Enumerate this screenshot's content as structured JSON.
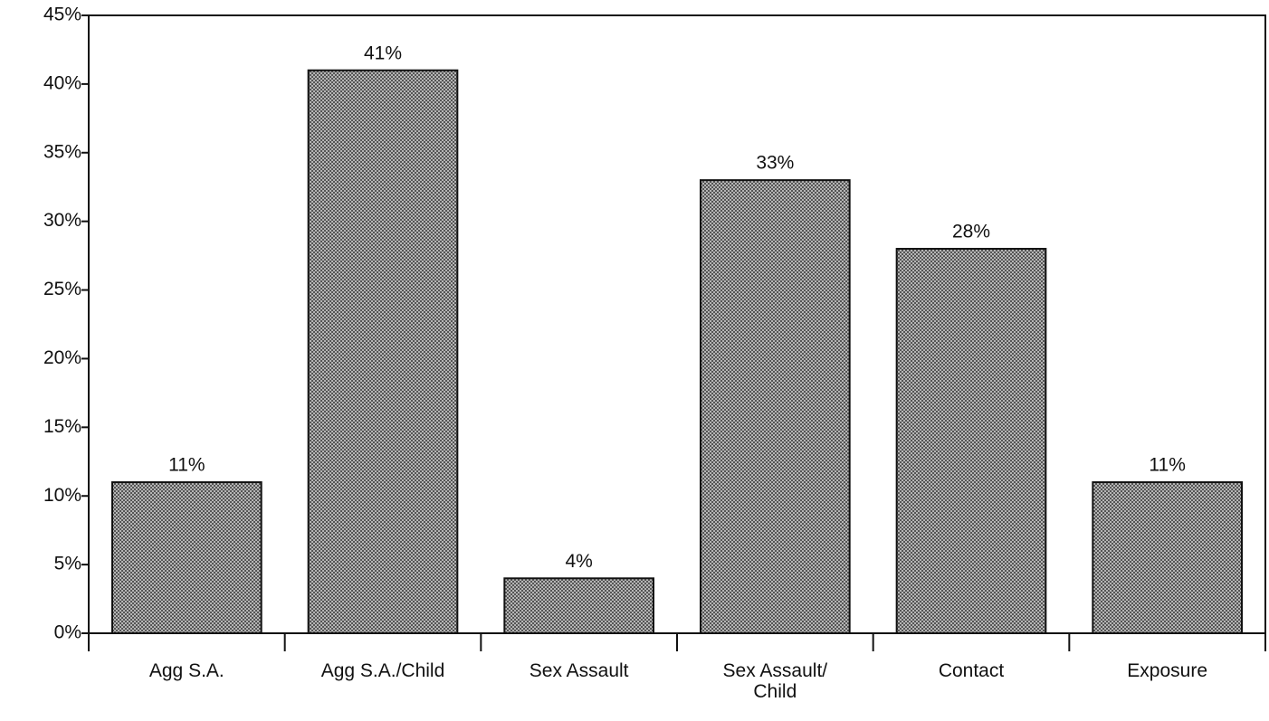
{
  "chart_data": {
    "type": "bar",
    "categories": [
      "Agg S.A.",
      "Agg S.A./Child",
      "Sex Assault",
      "Sex Assault/\nChild",
      "Contact",
      "Exposure"
    ],
    "values": [
      11,
      41,
      4,
      33,
      28,
      11
    ],
    "value_labels": [
      "11%",
      "41%",
      "4%",
      "33%",
      "28%",
      "11%"
    ],
    "color": "#8c8c8c",
    "ylim": [
      0,
      45
    ],
    "yticks": [
      {
        "value": 0,
        "label": "0%"
      },
      {
        "value": 5,
        "label": "5%"
      },
      {
        "value": 10,
        "label": "10%"
      },
      {
        "value": 15,
        "label": "15%"
      },
      {
        "value": 20,
        "label": "20%"
      },
      {
        "value": 25,
        "label": "25%"
      },
      {
        "value": 30,
        "label": "30%"
      },
      {
        "value": 35,
        "label": "35%"
      },
      {
        "value": 40,
        "label": "40%"
      },
      {
        "value": 45,
        "label": "45%"
      }
    ],
    "grid": false
  }
}
